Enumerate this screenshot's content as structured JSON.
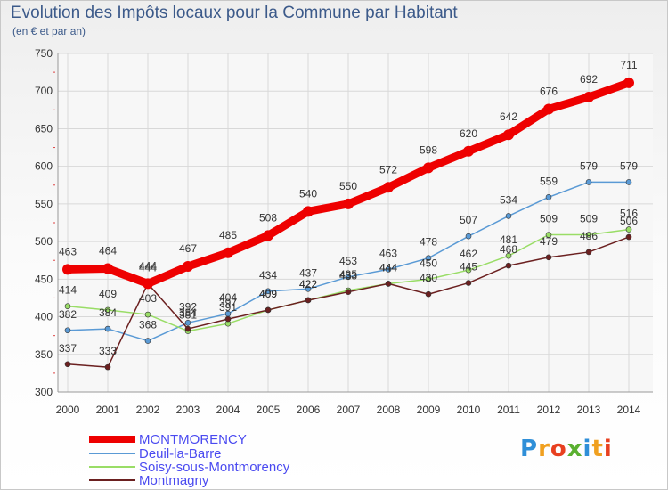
{
  "title": "Evolution des Impôts locaux pour la Commune par Habitant",
  "subtitle": "(en € et par an)",
  "logo_text": "Proxiti",
  "colors": {
    "MONTMORENCY": "#ee0000",
    "Deuil-la-Barre": "#5a9ad5",
    "Soisy-sous-Montmorency": "#99dd66",
    "Montmagny": "#6b2020",
    "axis_text": "#333333",
    "legend_text": "#4a4af0",
    "title_text": "#3c5a8a"
  },
  "chart_data": {
    "type": "line",
    "title": "Evolution des Impôts locaux pour la Commune par Habitant",
    "subtitle": "(en € et par an)",
    "x": [
      2000,
      2001,
      2002,
      2003,
      2004,
      2005,
      2006,
      2007,
      2008,
      2009,
      2010,
      2011,
      2012,
      2013,
      2014
    ],
    "ylim": [
      300,
      750
    ],
    "yticks": [
      300,
      350,
      400,
      450,
      500,
      550,
      600,
      650,
      700,
      750
    ],
    "grid": true,
    "legend_position": "bottom-left",
    "series": [
      {
        "name": "MONTMORENCY",
        "values": [
          463,
          464,
          444,
          467,
          485,
          508,
          540,
          550,
          572,
          598,
          620,
          642,
          676,
          692,
          711
        ]
      },
      {
        "name": "Deuil-la-Barre",
        "values": [
          382,
          384,
          368,
          392,
          404,
          434,
          437,
          453,
          463,
          478,
          507,
          534,
          559,
          579,
          579
        ]
      },
      {
        "name": "Soisy-sous-Montmorency",
        "values": [
          414,
          409,
          403,
          381,
          391,
          409,
          422,
          435,
          444,
          450,
          462,
          481,
          509,
          509,
          516
        ]
      },
      {
        "name": "Montmagny",
        "values": [
          337,
          333,
          444,
          384,
          397,
          409,
          422,
          433,
          444,
          430,
          445,
          468,
          479,
          486,
          506
        ]
      }
    ]
  }
}
